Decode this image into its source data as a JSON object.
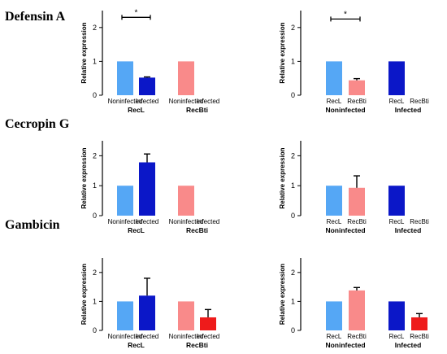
{
  "rows": [
    {
      "title": "Defensin A"
    },
    {
      "title": "Cecropin G"
    },
    {
      "title": "Gambicin"
    }
  ],
  "colors": {
    "light_blue": "#55a7f5",
    "dark_blue": "#0b17c8",
    "pink": "#f98a8a",
    "red": "#ee1b1b",
    "axis": "#000000",
    "error_bar": "#000000"
  },
  "chart_data": [
    {
      "type": "bar",
      "row": 0,
      "col": 0,
      "ylabel": "Relative expression",
      "ylim": [
        0,
        2.5
      ],
      "yticks": [
        0,
        1,
        2
      ],
      "tick_labels": [
        "Noninfected",
        "Infected",
        "Noninfected",
        "Infected"
      ],
      "group_labels": [
        "RecL",
        "RecBti"
      ],
      "values": [
        1.0,
        0.52,
        1.0,
        null
      ],
      "errors": [
        0,
        0.02,
        0,
        0
      ],
      "colors": [
        "light_blue",
        "dark_blue",
        "pink",
        "red"
      ],
      "significance": [
        {
          "between": [
            0,
            1
          ],
          "y": 2.3,
          "label": "*"
        }
      ]
    },
    {
      "type": "bar",
      "row": 0,
      "col": 1,
      "ylabel": "Relative expression",
      "ylim": [
        0,
        2.5
      ],
      "yticks": [
        0,
        1,
        2
      ],
      "tick_labels": [
        "RecL",
        "RecBti",
        "RecL",
        "RecBti"
      ],
      "group_labels": [
        "Noninfected",
        "Infected"
      ],
      "values": [
        1.0,
        0.44,
        1.0,
        null
      ],
      "errors": [
        0,
        0.05,
        0,
        0
      ],
      "colors": [
        "light_blue",
        "pink",
        "dark_blue",
        "red"
      ],
      "significance": [
        {
          "between": [
            0,
            1
          ],
          "y": 2.25,
          "label": "*"
        }
      ]
    },
    {
      "type": "bar",
      "row": 1,
      "col": 0,
      "ylabel": "Relative expression",
      "ylim": [
        0,
        2.5
      ],
      "yticks": [
        0,
        1,
        2
      ],
      "tick_labels": [
        "Noninfected",
        "Infected",
        "Noninfected",
        "Infected"
      ],
      "group_labels": [
        "RecL",
        "RecBti"
      ],
      "values": [
        1.0,
        1.78,
        1.0,
        null
      ],
      "errors": [
        0,
        0.28,
        0,
        0
      ],
      "colors": [
        "light_blue",
        "dark_blue",
        "pink",
        "red"
      ],
      "significance": []
    },
    {
      "type": "bar",
      "row": 1,
      "col": 1,
      "ylabel": "Relative expression",
      "ylim": [
        0,
        2.5
      ],
      "yticks": [
        0,
        1,
        2
      ],
      "tick_labels": [
        "RecL",
        "RecBti",
        "RecL",
        "RecBti"
      ],
      "group_labels": [
        "Noninfected",
        "Infected"
      ],
      "values": [
        1.0,
        0.93,
        1.0,
        null
      ],
      "errors": [
        0,
        0.4,
        0,
        0
      ],
      "colors": [
        "light_blue",
        "pink",
        "dark_blue",
        "red"
      ],
      "significance": []
    },
    {
      "type": "bar",
      "row": 2,
      "col": 0,
      "ylabel": "Relative expression",
      "ylim": [
        0,
        2.5
      ],
      "yticks": [
        0,
        1,
        2
      ],
      "tick_labels": [
        "Noninfected",
        "Infected",
        "Noninfected",
        "Infected"
      ],
      "group_labels": [
        "RecL",
        "RecBti"
      ],
      "values": [
        1.0,
        1.2,
        1.0,
        0.45
      ],
      "errors": [
        0,
        0.6,
        0,
        0.27
      ],
      "colors": [
        "light_blue",
        "dark_blue",
        "pink",
        "red"
      ],
      "significance": []
    },
    {
      "type": "bar",
      "row": 2,
      "col": 1,
      "ylabel": "Relative expression",
      "ylim": [
        0,
        2.5
      ],
      "yticks": [
        0,
        1,
        2
      ],
      "tick_labels": [
        "RecL",
        "RecBti",
        "RecL",
        "RecBti"
      ],
      "group_labels": [
        "Noninfected",
        "Infected"
      ],
      "values": [
        1.0,
        1.38,
        1.0,
        0.45
      ],
      "errors": [
        0,
        0.1,
        0,
        0.13
      ],
      "colors": [
        "light_blue",
        "pink",
        "dark_blue",
        "red"
      ],
      "significance": []
    }
  ]
}
